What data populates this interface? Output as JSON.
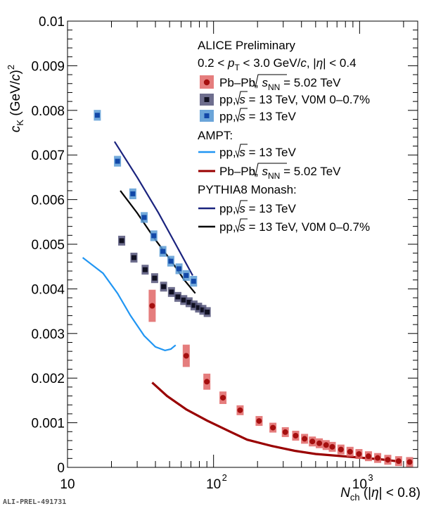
{
  "watermark": "ALI-PREL-491731",
  "labels": {
    "y_main": "c",
    "y_sub": "K",
    "y_unit_pre": " (GeV/",
    "y_unit_c": "c",
    "y_unit_post": ")",
    "y_unit_exp": "2",
    "x_main": "N",
    "x_sub": "ch",
    "x_cond_pre": " (|",
    "x_cond_eta": "η",
    "x_cond_post": "| < 0.8)"
  },
  "legend": {
    "header": "ALICE Preliminary",
    "sel_a": "0.2 < ",
    "sel_p": "p",
    "sel_T": "T",
    "sel_b": " < 3.0 GeV/",
    "sel_c": "c",
    "sel_d": ", |",
    "sel_eta": "η",
    "sel_e": "| < 0.4",
    "pbpb_pre": "Pb–Pb, ",
    "pbpb_s": "s",
    "pbpb_NN": "NN",
    "pbpb_val": " = 5.02 TeV",
    "pp_pre": "pp, ",
    "pp_s": "s",
    "pp_val": " = 13 TeV",
    "pp_v0m_val": " = 13 TeV, V0M 0–0.7%",
    "ampt_header": "AMPT:",
    "pythia_header": "PYTHIA8 Monash:"
  },
  "colors": {
    "pbpb": "#a50f0f",
    "pbpb_sys": "#e06666",
    "pp_v0m": "#111122",
    "pp_v0m_sys": "#55557a",
    "pp": "#1248a8",
    "pp_sys": "#5b9bd5",
    "ampt_pp": "#2196f3",
    "ampt_pbpb": "#990000",
    "pythia_pp": "#1a237e",
    "pythia_v0m": "#000000"
  },
  "chart_data": {
    "type": "scatter",
    "x_scale": "log",
    "xlim": [
      10,
      2500
    ],
    "ylim": [
      0,
      0.01
    ],
    "x_tick_labels": [
      "10",
      "10",
      "10"
    ],
    "x_tick_exps": [
      "",
      "2",
      "3"
    ],
    "y_tick_labels": [
      "0",
      "0.001",
      "0.002",
      "0.003",
      "0.004",
      "0.005",
      "0.006",
      "0.007",
      "0.008",
      "0.009",
      "0.01"
    ],
    "y_ticks": [
      0,
      0.001,
      0.002,
      0.003,
      0.004,
      0.005,
      0.006,
      0.007,
      0.008,
      0.009,
      0.01
    ],
    "series": [
      {
        "key": "pbpb",
        "style": "circle",
        "points": [
          [
            38,
            0.00362,
            0.00036
          ],
          [
            65,
            0.0025,
            0.00025
          ],
          [
            90,
            0.00192,
            0.00018
          ],
          [
            116,
            0.00156,
            0.00014
          ],
          [
            152,
            0.00128,
            0.00011
          ],
          [
            205,
            0.00104,
            8e-05
          ],
          [
            255,
            0.00089,
            7e-05
          ],
          [
            310,
            0.00079,
            6e-05
          ],
          [
            365,
            0.00071,
            5e-05
          ],
          [
            420,
            0.00064,
            4e-05
          ],
          [
            475,
            0.00058,
            4e-05
          ],
          [
            530,
            0.00054,
            3e-05
          ],
          [
            590,
            0.0005,
            3e-05
          ],
          [
            650,
            0.00046,
            3e-05
          ],
          [
            745,
            0.0004,
            3e-05
          ],
          [
            860,
            0.00035,
            2e-05
          ],
          [
            990,
            0.0003,
            2e-05
          ],
          [
            1150,
            0.00025,
            2e-05
          ],
          [
            1330,
            0.00021,
            2e-05
          ],
          [
            1560,
            0.00017,
            1e-05
          ],
          [
            1850,
            0.00014,
            1e-05
          ],
          [
            2200,
            0.00012,
            1e-05
          ]
        ]
      },
      {
        "key": "pp_v0m",
        "style": "square",
        "points": [
          [
            23.5,
            0.00508,
            0.0001
          ],
          [
            28.5,
            0.0047,
            0.0001
          ],
          [
            34,
            0.00443,
            0.0001
          ],
          [
            39.5,
            0.00424,
            0.0001
          ],
          [
            45.5,
            0.00405,
            0.0001
          ],
          [
            51.5,
            0.00393,
            0.0001
          ],
          [
            57,
            0.00382,
            0.0001
          ],
          [
            62.5,
            0.00375,
            0.0001
          ],
          [
            68,
            0.0037,
            0.0001
          ],
          [
            73.5,
            0.00363,
            0.0001
          ],
          [
            79,
            0.00358,
            0.0001
          ],
          [
            84.5,
            0.00353,
            0.0001
          ],
          [
            90.5,
            0.00348,
            0.0001
          ]
        ]
      },
      {
        "key": "pp",
        "style": "square",
        "points": [
          [
            16,
            0.00789,
            0.00012
          ],
          [
            22,
            0.00686,
            0.00012
          ],
          [
            28,
            0.00613,
            0.00012
          ],
          [
            33.5,
            0.0056,
            0.00012
          ],
          [
            39,
            0.00519,
            0.00012
          ],
          [
            45,
            0.00484,
            0.00012
          ],
          [
            51,
            0.00462,
            0.00012
          ],
          [
            58,
            0.00445,
            0.00012
          ],
          [
            65,
            0.0043,
            0.00012
          ],
          [
            73,
            0.00417,
            0.00012
          ]
        ]
      }
    ],
    "curves": [
      {
        "key": "ampt_pp",
        "points": [
          [
            12.7,
            0.0047
          ],
          [
            17.5,
            0.00435
          ],
          [
            22,
            0.0039
          ],
          [
            27,
            0.0034
          ],
          [
            33.5,
            0.00295
          ],
          [
            40,
            0.0027
          ],
          [
            46.5,
            0.00262
          ],
          [
            51,
            0.00265
          ],
          [
            55,
            0.00274
          ]
        ]
      },
      {
        "key": "ampt_pbpb",
        "points": [
          [
            38,
            0.0019
          ],
          [
            48,
            0.0016
          ],
          [
            65,
            0.0013
          ],
          [
            90,
            0.00105
          ],
          [
            130,
            0.0008
          ],
          [
            170,
            0.00062
          ],
          [
            250,
            0.00048
          ],
          [
            360,
            0.00037
          ],
          [
            500,
            0.0003
          ],
          [
            700,
            0.00026
          ],
          [
            1000,
            0.00022
          ],
          [
            1400,
            0.00018
          ],
          [
            1900,
            0.00013
          ]
        ]
      },
      {
        "key": "pythia_pp",
        "points": [
          [
            21,
            0.0073
          ],
          [
            30,
            0.0065
          ],
          [
            42,
            0.0057
          ],
          [
            55,
            0.005
          ],
          [
            72,
            0.0043
          ]
        ]
      },
      {
        "key": "pythia_v0m",
        "points": [
          [
            23,
            0.0062
          ],
          [
            30,
            0.0057
          ],
          [
            40,
            0.0051
          ],
          [
            52,
            0.0046
          ],
          [
            63,
            0.0042
          ],
          [
            75,
            0.0039
          ]
        ]
      }
    ]
  }
}
